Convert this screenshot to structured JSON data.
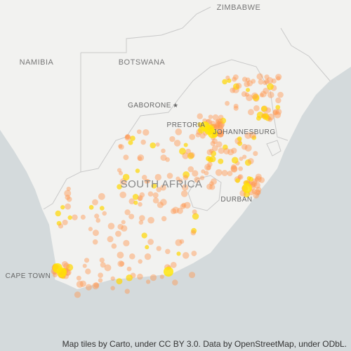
{
  "countries": [
    "ZIMBABWE",
    "NAMIBIA",
    "BOTSWANA",
    "SOUTH AFRICA"
  ],
  "cities": [
    "GABORONE",
    "PRETORIA",
    "JOHANNESBURG",
    "DURBAN",
    "CAPE TOWN"
  ],
  "attribution": "Map tiles by Carto, under CC BY 3.0. Data by OpenStreetMap, under ODbL."
}
